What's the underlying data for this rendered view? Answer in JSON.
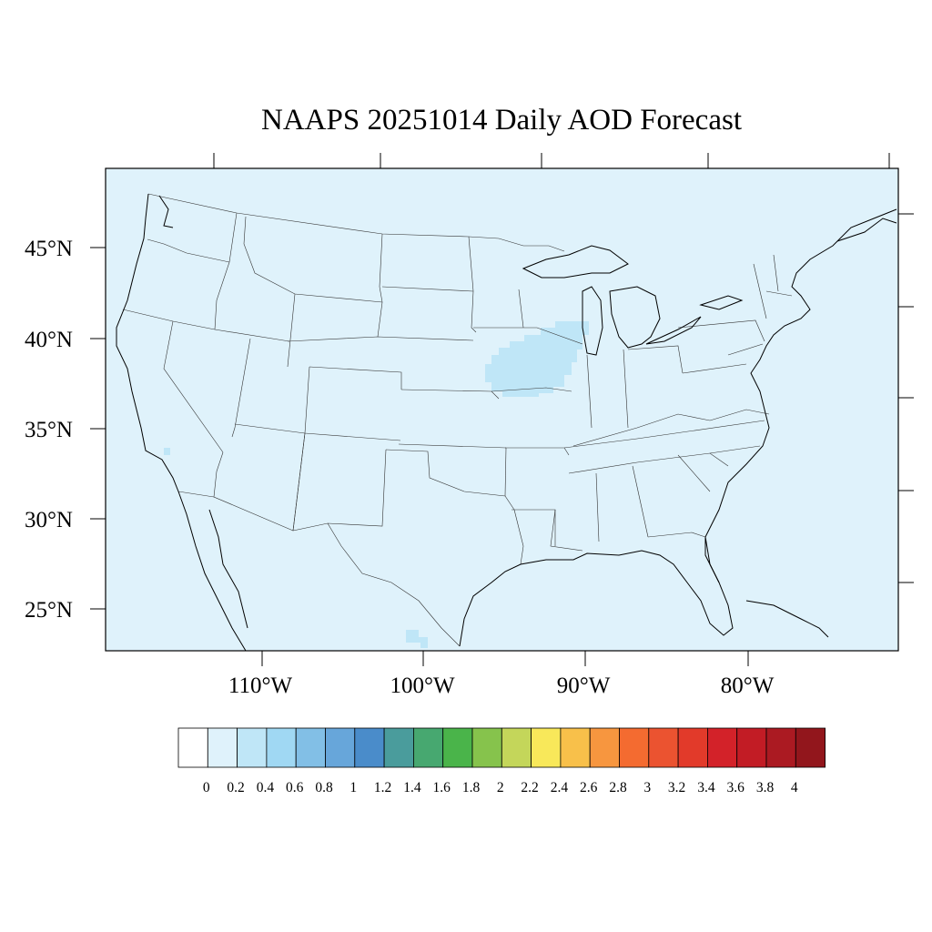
{
  "title": "NAAPS 20251014 Daily AOD Forecast",
  "map": {
    "region": "Continental United States",
    "background_level_color": "#dff2fb",
    "aod_patches": [
      {
        "name": "midwest-aod-patch",
        "level_color": "#bfe6f7",
        "aod_range": "0.2-0.4"
      },
      {
        "name": "southwest-aod-spot",
        "level_color": "#bfe6f7",
        "aod_range": "0.2-0.4"
      },
      {
        "name": "gulf-aod-spot",
        "level_color": "#bfe6f7",
        "aod_range": "0.2-0.4"
      }
    ]
  },
  "axes": {
    "latitude_labels": [
      "45°N",
      "40°N",
      "35°N",
      "30°N",
      "25°N"
    ],
    "longitude_labels": [
      "110°W",
      "100°W",
      "90°W",
      "80°W"
    ]
  },
  "colorbar": {
    "labels": [
      "0",
      "0.2",
      "0.4",
      "0.6",
      "0.8",
      "1",
      "1.2",
      "1.4",
      "1.6",
      "1.8",
      "2",
      "2.2",
      "2.4",
      "2.6",
      "2.8",
      "3",
      "3.2",
      "3.4",
      "3.6",
      "3.8",
      "4"
    ],
    "colors": [
      "#ffffff",
      "#dff2fb",
      "#bfe6f7",
      "#a0d8f3",
      "#82bfe6",
      "#67a6da",
      "#4a8cca",
      "#4a9c9c",
      "#47a870",
      "#4ab44a",
      "#86c34c",
      "#c4d65a",
      "#f8e85a",
      "#f8c04a",
      "#f7963f",
      "#f46b30",
      "#eb5330",
      "#e23a2a",
      "#d32229",
      "#c21c25",
      "#ab1a22",
      "#92161c"
    ]
  }
}
